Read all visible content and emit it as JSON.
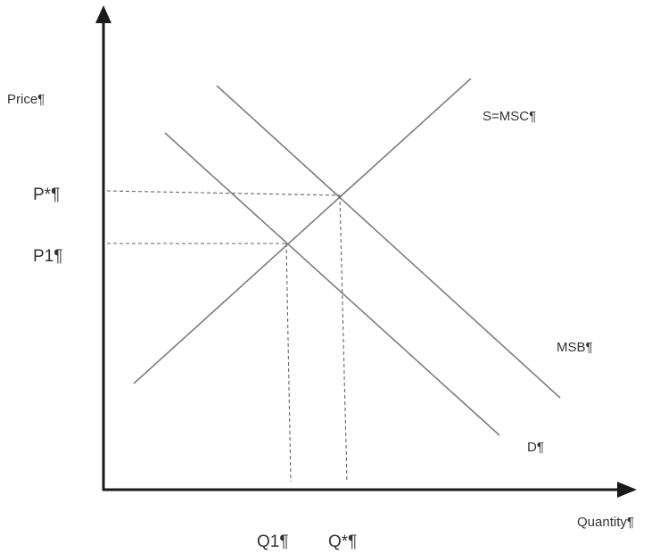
{
  "axes": {
    "y_label": "Price¶",
    "x_label": "Quantity¶"
  },
  "curves": {
    "supply_label": "S=MSC¶",
    "msb_label": "MSB¶",
    "demand_label": "D¶"
  },
  "prices": {
    "p_star": "P*¶",
    "p1": "P1¶"
  },
  "quantities": {
    "q1": "Q1¶",
    "q_star": "Q*¶"
  },
  "colors": {
    "axis": "#1a1a1a",
    "curve": "#7d7d7d",
    "guide": "#666666",
    "text": "#333333"
  }
}
